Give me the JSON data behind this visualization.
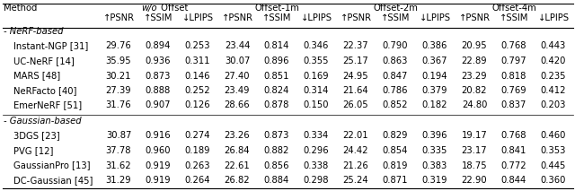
{
  "group_labels": [
    "w/o Offset",
    "Offset-1m",
    "Offset-2m",
    "Offset-4m"
  ],
  "group_label_italic_part": [
    "w/o",
    "Offset-1m",
    "Offset-2m",
    "Offset-4m"
  ],
  "metric_headers": [
    "↑PSNR",
    "↑SSIM",
    "↓LPIPS",
    "↑PSNR",
    "↑SSIM",
    "↓LPIPS",
    "↑PSNR",
    "↑SSIM",
    "↓LPIPS",
    "↑PSNR",
    "↑SSIM",
    "↓LPIPS"
  ],
  "section1_label": "- NeRF-based",
  "section2_label": "- Gaussian-based",
  "rows": [
    {
      "method": "Instant-NGP [31]",
      "values": [
        "29.76",
        "0.894",
        "0.253",
        "23.44",
        "0.814",
        "0.346",
        "22.37",
        "0.790",
        "0.386",
        "20.95",
        "0.768",
        "0.443"
      ],
      "section": 1
    },
    {
      "method": "UC-NeRF [14]",
      "values": [
        "35.95",
        "0.936",
        "0.311",
        "30.07",
        "0.896",
        "0.355",
        "25.17",
        "0.863",
        "0.367",
        "22.89",
        "0.797",
        "0.420"
      ],
      "section": 1
    },
    {
      "method": "MARS [48]",
      "values": [
        "30.21",
        "0.873",
        "0.146",
        "27.40",
        "0.851",
        "0.169",
        "24.95",
        "0.847",
        "0.194",
        "23.29",
        "0.818",
        "0.235"
      ],
      "section": 1
    },
    {
      "method": "NeRFacto [40]",
      "values": [
        "27.39",
        "0.888",
        "0.252",
        "23.49",
        "0.824",
        "0.314",
        "21.64",
        "0.786",
        "0.379",
        "20.82",
        "0.769",
        "0.412"
      ],
      "section": 1
    },
    {
      "method": "EmerNeRF [51]",
      "values": [
        "31.76",
        "0.907",
        "0.126",
        "28.66",
        "0.878",
        "0.150",
        "26.05",
        "0.852",
        "0.182",
        "24.80",
        "0.837",
        "0.203"
      ],
      "section": 1
    },
    {
      "method": "3DGS [23]",
      "values": [
        "30.87",
        "0.916",
        "0.274",
        "23.26",
        "0.873",
        "0.334",
        "22.01",
        "0.829",
        "0.396",
        "19.17",
        "0.768",
        "0.460"
      ],
      "section": 2
    },
    {
      "method": "PVG [12]",
      "values": [
        "37.78",
        "0.960",
        "0.189",
        "26.84",
        "0.882",
        "0.296",
        "24.42",
        "0.854",
        "0.335",
        "23.17",
        "0.841",
        "0.353"
      ],
      "section": 2
    },
    {
      "method": "GaussianPro [13]",
      "values": [
        "31.62",
        "0.919",
        "0.263",
        "22.61",
        "0.856",
        "0.338",
        "21.26",
        "0.819",
        "0.383",
        "18.75",
        "0.772",
        "0.445"
      ],
      "section": 2
    },
    {
      "method": "DC-Gaussian [45]",
      "values": [
        "31.29",
        "0.919",
        "0.264",
        "26.82",
        "0.884",
        "0.298",
        "25.24",
        "0.871",
        "0.319",
        "22.90",
        "0.844",
        "0.360"
      ],
      "section": 2
    }
  ],
  "font_size": 7.2,
  "bg_color": "#ffffff"
}
